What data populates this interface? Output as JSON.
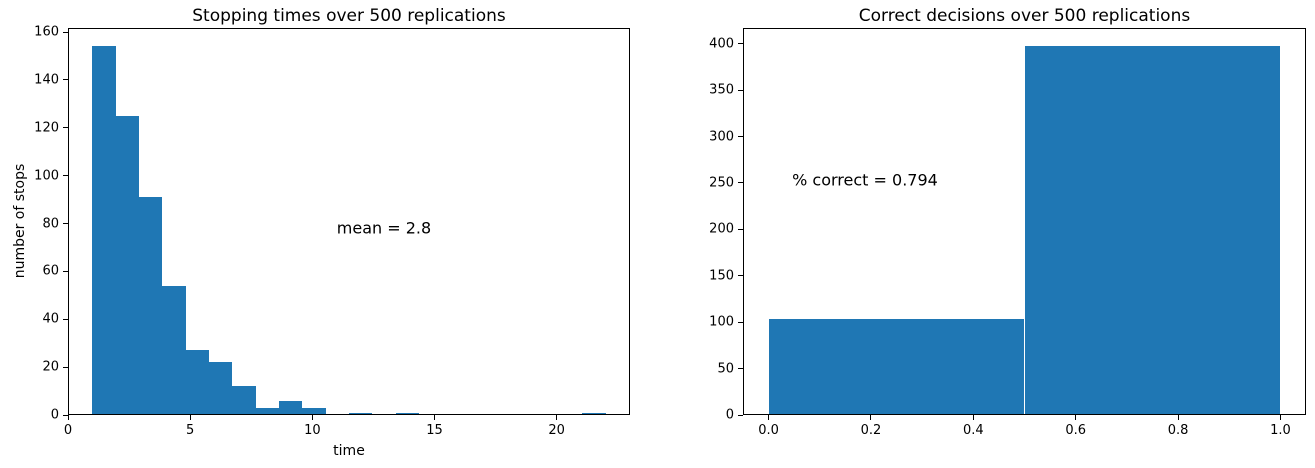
{
  "figure": {
    "background_color": "#ffffff",
    "bar_color": "#1f77b4",
    "axis_color": "#000000",
    "text_color": "#000000"
  },
  "chart_data": [
    {
      "type": "bar",
      "kind": "histogram",
      "title": "Stopping times over 500 replications",
      "xlabel": "time",
      "ylabel": "number of stops",
      "bin_start": 1.0,
      "bin_width": 0.9545,
      "counts": [
        154,
        125,
        91,
        54,
        27,
        22,
        12,
        3,
        6,
        3,
        0,
        1,
        0,
        1,
        0,
        0,
        0,
        0,
        0,
        0,
        0,
        1
      ],
      "xlim": [
        0,
        23
      ],
      "ylim": [
        0,
        161.7
      ],
      "xticks": [
        0,
        5,
        10,
        15,
        20
      ],
      "xtick_labels": [
        "0",
        "5",
        "10",
        "15",
        "20"
      ],
      "yticks": [
        0,
        20,
        40,
        60,
        80,
        100,
        120,
        140,
        160
      ],
      "ytick_labels": [
        "0",
        "20",
        "40",
        "60",
        "80",
        "100",
        "120",
        "140",
        "160"
      ],
      "annotation": {
        "text": "mean = 2.8",
        "x": 11.0,
        "y": 78
      },
      "grid": false,
      "legend": null
    },
    {
      "type": "bar",
      "kind": "histogram",
      "title": "Correct decisions over 500 replications",
      "xlabel": "",
      "ylabel": "",
      "bin_start": 0.0,
      "bin_width": 0.5,
      "counts": [
        103,
        397
      ],
      "xlim": [
        -0.05,
        1.05
      ],
      "ylim": [
        0,
        416.9
      ],
      "xticks": [
        0,
        0.2,
        0.4,
        0.6,
        0.8,
        1.0
      ],
      "xtick_labels": [
        "0.0",
        "0.2",
        "0.4",
        "0.6",
        "0.8",
        "1.0"
      ],
      "yticks": [
        0,
        50,
        100,
        150,
        200,
        250,
        300,
        350,
        400
      ],
      "ytick_labels": [
        "0",
        "50",
        "100",
        "150",
        "200",
        "250",
        "300",
        "350",
        "400"
      ],
      "annotation": {
        "text": "% correct = 0.794",
        "x": 0.046,
        "y": 253
      },
      "grid": false,
      "legend": null
    }
  ]
}
